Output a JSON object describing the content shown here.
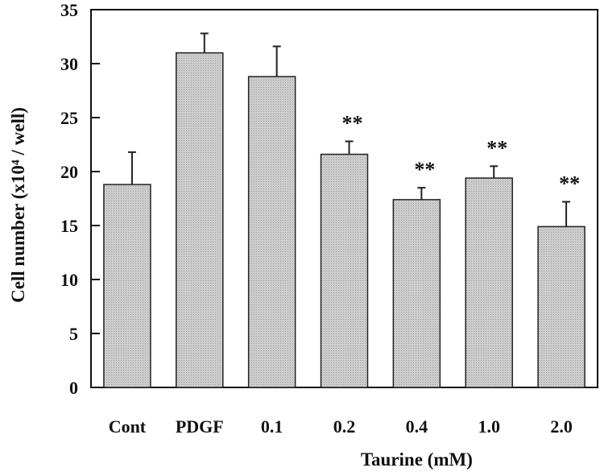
{
  "chart_data": {
    "type": "bar",
    "categories": [
      "Cont",
      "PDGF",
      "0.1",
      "0.2",
      "0.4",
      "1.0",
      "2.0"
    ],
    "values": [
      18.8,
      31.0,
      28.8,
      21.6,
      17.4,
      19.4,
      14.9
    ],
    "errors": [
      3.0,
      1.8,
      2.8,
      1.2,
      1.1,
      1.1,
      2.3
    ],
    "annotations": [
      "",
      "",
      "",
      "**",
      "**",
      "**",
      "**"
    ],
    "xlabel": "Taurine (mM)",
    "ylabel": "Cell number (x10⁴ / well)",
    "ylim": [
      0,
      35
    ],
    "yticks": [
      0,
      5,
      10,
      15,
      20,
      25,
      30,
      35
    ],
    "grid": false,
    "bar_color": "#c8c8c8"
  }
}
